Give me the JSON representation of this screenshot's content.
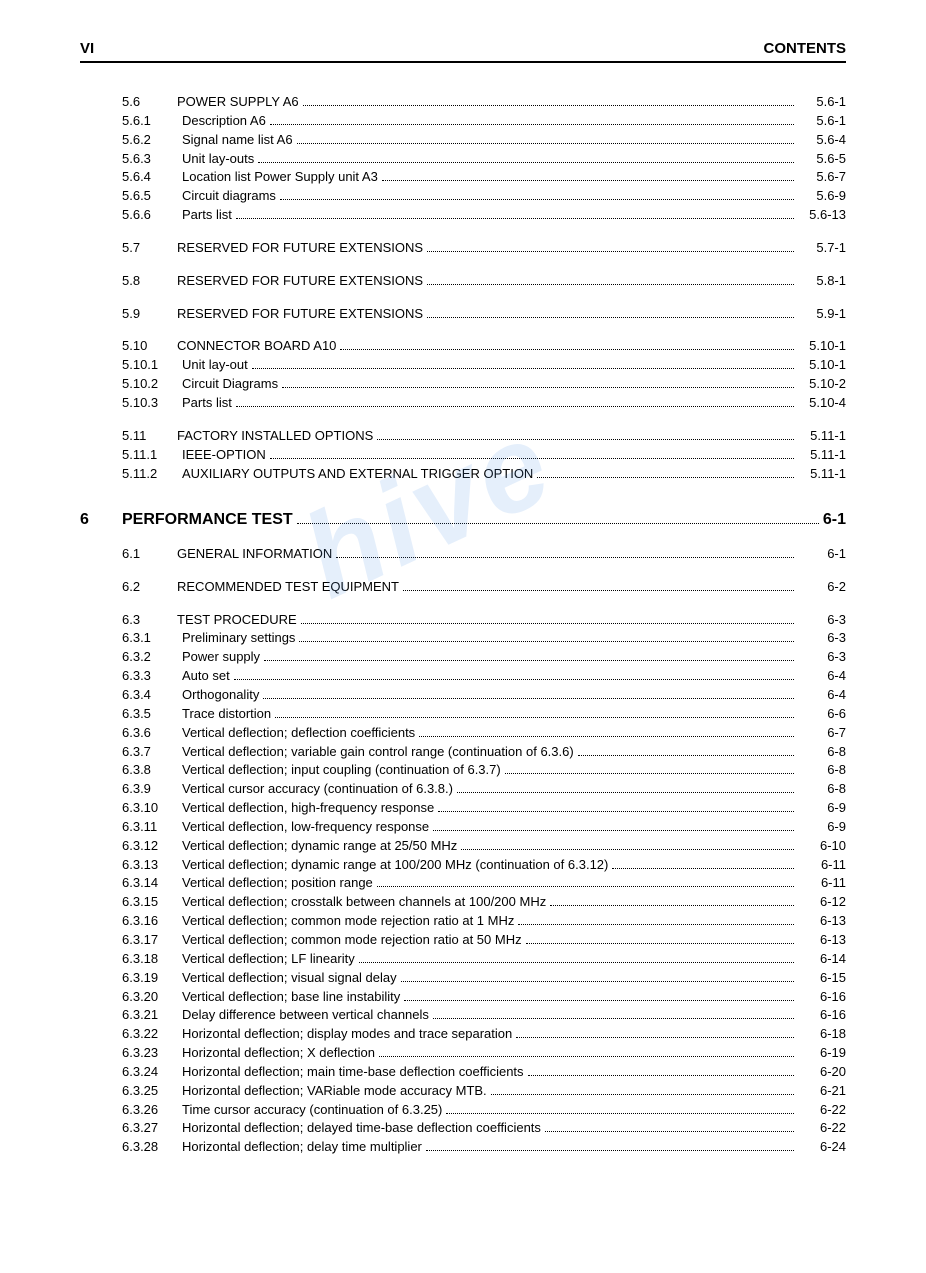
{
  "header": {
    "left": "VI",
    "right": "CONTENTS"
  },
  "watermark": "hive",
  "chapter": {
    "num": "6",
    "title": "PERFORMANCE TEST",
    "page": "6-1"
  },
  "lines": [
    {
      "lvl": 1,
      "num": "5.6",
      "sub": "",
      "title": "POWER SUPPLY A6",
      "page": "5.6-1"
    },
    {
      "lvl": 2,
      "num": "",
      "sub": "5.6.1",
      "title": "Description A6",
      "page": "5.6-1"
    },
    {
      "lvl": 2,
      "num": "",
      "sub": "5.6.2",
      "title": "Signal name list A6",
      "page": "5.6-4"
    },
    {
      "lvl": 2,
      "num": "",
      "sub": "5.6.3",
      "title": "Unit lay-outs",
      "page": "5.6-5"
    },
    {
      "lvl": 2,
      "num": "",
      "sub": "5.6.4",
      "title": "Location list Power Supply unit A3",
      "page": "5.6-7"
    },
    {
      "lvl": 2,
      "num": "",
      "sub": "5.6.5",
      "title": "Circuit diagrams",
      "page": "5.6-9"
    },
    {
      "lvl": 2,
      "num": "",
      "sub": "5.6.6",
      "title": "Parts list",
      "page": "5.6-13"
    },
    {
      "gap": true
    },
    {
      "lvl": 1,
      "num": "5.7",
      "sub": "",
      "title": "RESERVED FOR FUTURE EXTENSIONS",
      "page": "5.7-1"
    },
    {
      "gap": true
    },
    {
      "lvl": 1,
      "num": "5.8",
      "sub": "",
      "title": "RESERVED FOR FUTURE EXTENSIONS",
      "page": "5.8-1"
    },
    {
      "gap": true
    },
    {
      "lvl": 1,
      "num": "5.9",
      "sub": "",
      "title": "RESERVED FOR FUTURE EXTENSIONS",
      "page": "5.9-1"
    },
    {
      "gap": true
    },
    {
      "lvl": 1,
      "num": "5.10",
      "sub": "",
      "title": "CONNECTOR BOARD A10",
      "page": "5.10-1"
    },
    {
      "lvl": 2,
      "num": "",
      "sub": "5.10.1",
      "title": "Unit lay-out",
      "page": "5.10-1"
    },
    {
      "lvl": 2,
      "num": "",
      "sub": "5.10.2",
      "title": "Circuit Diagrams",
      "page": "5.10-2"
    },
    {
      "lvl": 2,
      "num": "",
      "sub": "5.10.3",
      "title": "Parts list",
      "page": "5.10-4"
    },
    {
      "gap": true
    },
    {
      "lvl": 1,
      "num": "5.11",
      "sub": "",
      "title": "FACTORY INSTALLED OPTIONS",
      "page": "5.11-1"
    },
    {
      "lvl": 2,
      "num": "",
      "sub": "5.11.1",
      "title": "IEEE-OPTION",
      "page": "5.11-1"
    },
    {
      "lvl": 2,
      "num": "",
      "sub": "5.11.2",
      "title": "AUXILIARY OUTPUTS AND EXTERNAL TRIGGER OPTION",
      "page": "5.11-1"
    }
  ],
  "lines2": [
    {
      "lvl": 1,
      "num": "6.1",
      "sub": "",
      "title": "GENERAL INFORMATION",
      "page": "6-1"
    },
    {
      "gap": true
    },
    {
      "lvl": 1,
      "num": "6.2",
      "sub": "",
      "title": "RECOMMENDED TEST EQUIPMENT",
      "page": "6-2"
    },
    {
      "gap": true
    },
    {
      "lvl": 1,
      "num": "6.3",
      "sub": "",
      "title": "TEST PROCEDURE",
      "page": "6-3"
    },
    {
      "lvl": 2,
      "num": "",
      "sub": "6.3.1",
      "title": "Preliminary settings",
      "page": "6-3"
    },
    {
      "lvl": 2,
      "num": "",
      "sub": "6.3.2",
      "title": "Power supply",
      "page": "6-3"
    },
    {
      "lvl": 2,
      "num": "",
      "sub": "6.3.3",
      "title": "Auto set",
      "page": "6-4"
    },
    {
      "lvl": 2,
      "num": "",
      "sub": "6.3.4",
      "title": "Orthogonality",
      "page": "6-4"
    },
    {
      "lvl": 2,
      "num": "",
      "sub": "6.3.5",
      "title": "Trace distortion",
      "page": "6-6"
    },
    {
      "lvl": 2,
      "num": "",
      "sub": "6.3.6",
      "title": "Vertical deflection; deflection coefficients",
      "page": "6-7"
    },
    {
      "lvl": 2,
      "num": "",
      "sub": "6.3.7",
      "title": "Vertical deflection; variable gain control range (continuation of 6.3.6)",
      "page": "6-8"
    },
    {
      "lvl": 2,
      "num": "",
      "sub": "6.3.8",
      "title": "Vertical deflection; input coupling (continuation of 6.3.7)",
      "page": "6-8"
    },
    {
      "lvl": 2,
      "num": "",
      "sub": "6.3.9",
      "title": "Vertical cursor accuracy (continuation of 6.3.8.)",
      "page": "6-8"
    },
    {
      "lvl": 2,
      "num": "",
      "sub": "6.3.10",
      "title": "Vertical deflection, high-frequency response",
      "page": "6-9"
    },
    {
      "lvl": 2,
      "num": "",
      "sub": "6.3.11",
      "title": "Vertical deflection, low-frequency response",
      "page": "6-9"
    },
    {
      "lvl": 2,
      "num": "",
      "sub": "6.3.12",
      "title": "Vertical deflection; dynamic range at 25/50 MHz",
      "page": "6-10"
    },
    {
      "lvl": 2,
      "num": "",
      "sub": "6.3.13",
      "title": "Vertical deflection; dynamic range at 100/200 MHz (continuation of 6.3.12)",
      "page": "6-11"
    },
    {
      "lvl": 2,
      "num": "",
      "sub": "6.3.14",
      "title": "Vertical deflection; position range",
      "page": "6-11"
    },
    {
      "lvl": 2,
      "num": "",
      "sub": "6.3.15",
      "title": "Vertical deflection; crosstalk between channels at 100/200 MHz",
      "page": "6-12"
    },
    {
      "lvl": 2,
      "num": "",
      "sub": "6.3.16",
      "title": "Vertical deflection; common mode rejection ratio at 1 MHz",
      "page": "6-13"
    },
    {
      "lvl": 2,
      "num": "",
      "sub": "6.3.17",
      "title": "Vertical deflection; common mode rejection ratio at 50 MHz",
      "page": "6-13"
    },
    {
      "lvl": 2,
      "num": "",
      "sub": "6.3.18",
      "title": "Vertical deflection; LF linearity",
      "page": "6-14"
    },
    {
      "lvl": 2,
      "num": "",
      "sub": "6.3.19",
      "title": "Vertical deflection; visual signal delay",
      "page": "6-15"
    },
    {
      "lvl": 2,
      "num": "",
      "sub": "6.3.20",
      "title": "Vertical deflection; base line instability",
      "page": "6-16"
    },
    {
      "lvl": 2,
      "num": "",
      "sub": "6.3.21",
      "title": "Delay difference between vertical channels",
      "page": "6-16"
    },
    {
      "lvl": 2,
      "num": "",
      "sub": "6.3.22",
      "title": "Horizontal deflection; display modes and trace separation",
      "page": "6-18"
    },
    {
      "lvl": 2,
      "num": "",
      "sub": "6.3.23",
      "title": "Horizontal deflection; X deflection",
      "page": "6-19"
    },
    {
      "lvl": 2,
      "num": "",
      "sub": "6.3.24",
      "title": "Horizontal deflection; main time-base deflection coefficients",
      "page": "6-20"
    },
    {
      "lvl": 2,
      "num": "",
      "sub": "6.3.25",
      "title": "Horizontal deflection; VARiable mode accuracy MTB.",
      "page": "6-21"
    },
    {
      "lvl": 2,
      "num": "",
      "sub": "6.3.26",
      "title": "Time cursor accuracy (continuation of 6.3.25)",
      "page": "6-22"
    },
    {
      "lvl": 2,
      "num": "",
      "sub": "6.3.27",
      "title": "Horizontal deflection; delayed time-base deflection coefficients",
      "page": "6-22"
    },
    {
      "lvl": 2,
      "num": "",
      "sub": "6.3.28",
      "title": "Horizontal deflection; delay time multiplier",
      "page": "6-24"
    }
  ]
}
